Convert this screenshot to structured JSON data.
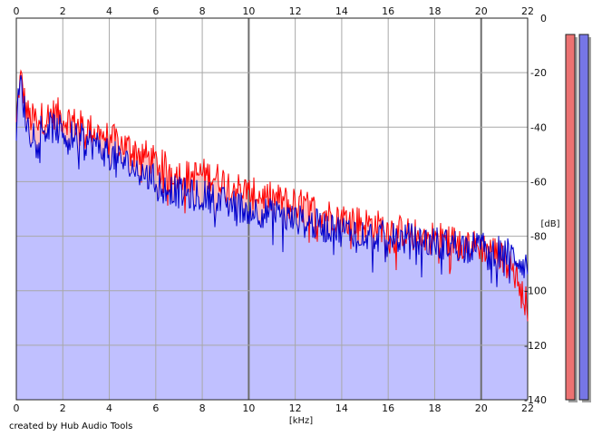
{
  "credit": "created by Hub Audio Tools",
  "chart_data": {
    "type": "area",
    "xlabel": "[kHz]",
    "ylabel": "[dB]",
    "xlim": [
      0,
      22
    ],
    "ylim": [
      -140,
      0
    ],
    "x_ticks": [
      0,
      2,
      4,
      6,
      8,
      10,
      12,
      14,
      16,
      18,
      20,
      22
    ],
    "y_ticks": [
      0,
      -20,
      -40,
      -60,
      -80,
      -100,
      -120,
      -140
    ],
    "grid": true,
    "colors": {
      "red": "#ff0000",
      "blue": "#0000cc",
      "blue_fill": "#c0c0ff",
      "red_fill": "#ffc0c0"
    },
    "series": [
      {
        "color": "red",
        "x": [
          0,
          0.1,
          0.2,
          0.3,
          0.4,
          0.6,
          0.8,
          1.0,
          1.2,
          1.5,
          1.8,
          2.0,
          2.3,
          2.6,
          3.0,
          3.5,
          4.0,
          4.5,
          5.0,
          5.5,
          6.0,
          6.5,
          7.0,
          7.5,
          8.0,
          8.5,
          9.0,
          9.5,
          10.0,
          10.5,
          11.0,
          11.5,
          12.0,
          12.5,
          13.0,
          13.5,
          14.0,
          14.5,
          15.0,
          15.5,
          16.0,
          16.5,
          17.0,
          17.5,
          18.0,
          18.5,
          19.0,
          19.5,
          20.0,
          20.5,
          21.0,
          21.3,
          21.6,
          21.8,
          22.0
        ],
        "y": [
          -40,
          -26,
          -22,
          -27,
          -33,
          -37,
          -37,
          -36,
          -37,
          -35,
          -35,
          -37,
          -37,
          -39,
          -40,
          -42,
          -44,
          -46,
          -48,
          -50,
          -53,
          -55,
          -57,
          -58,
          -57,
          -58,
          -60,
          -62,
          -64,
          -65,
          -66,
          -67,
          -68,
          -69,
          -71,
          -72,
          -73,
          -74,
          -75,
          -76,
          -77,
          -78,
          -79,
          -80,
          -80,
          -81,
          -82,
          -83,
          -84,
          -85,
          -88,
          -91,
          -96,
          -101,
          -106
        ]
      },
      {
        "color": "blue",
        "x": [
          0,
          0.1,
          0.2,
          0.3,
          0.4,
          0.6,
          0.8,
          1.0,
          1.2,
          1.5,
          1.8,
          2.0,
          2.3,
          2.6,
          3.0,
          3.5,
          4.0,
          4.5,
          5.0,
          5.5,
          6.0,
          6.5,
          7.0,
          7.5,
          8.0,
          8.5,
          9.0,
          9.5,
          10.0,
          10.5,
          11.0,
          11.5,
          12.0,
          12.5,
          13.0,
          13.5,
          14.0,
          14.5,
          15.0,
          15.5,
          16.0,
          16.5,
          17.0,
          17.5,
          18.0,
          18.5,
          19.0,
          19.5,
          20.0,
          20.5,
          21.0,
          21.3,
          21.6,
          21.8,
          22.0
        ],
        "y": [
          -42,
          -28,
          -24,
          -30,
          -37,
          -42,
          -41,
          -40,
          -41,
          -40,
          -41,
          -42,
          -43,
          -44,
          -45,
          -47,
          -50,
          -52,
          -55,
          -57,
          -60,
          -62,
          -64,
          -65,
          -65,
          -66,
          -68,
          -69,
          -70,
          -71,
          -72,
          -73,
          -74,
          -75,
          -76,
          -77,
          -78,
          -78,
          -79,
          -80,
          -80,
          -81,
          -81,
          -82,
          -82,
          -83,
          -83,
          -84,
          -84,
          -85,
          -86,
          -87,
          -88,
          -90,
          -91
        ]
      }
    ],
    "meters": [
      {
        "color": "red",
        "value": -6
      },
      {
        "color": "blue",
        "value": -6
      }
    ]
  }
}
